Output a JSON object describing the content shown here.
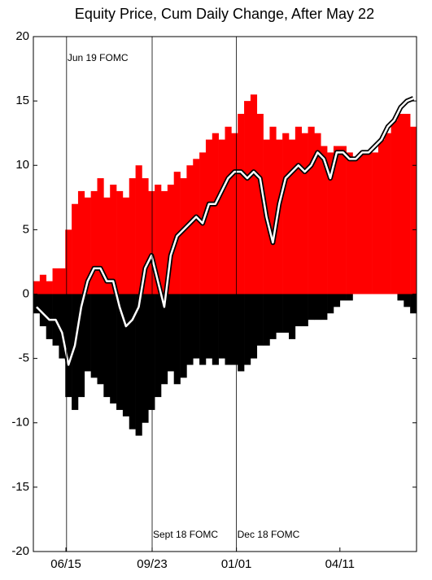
{
  "chart_data": {
    "type": "bar",
    "title": "Equity Price, Cum Daily Change, After May 22",
    "x": [
      0,
      1,
      2,
      3,
      4,
      5,
      6,
      7,
      8,
      9,
      10,
      11,
      12,
      13,
      14,
      15,
      16,
      17,
      18,
      19,
      20,
      21,
      22,
      23,
      24,
      25,
      26,
      27,
      28,
      29,
      30,
      31,
      32,
      33,
      34,
      35,
      36,
      37,
      38,
      39,
      40,
      41,
      42,
      43,
      44,
      45,
      46,
      47,
      48,
      49,
      50,
      51,
      52,
      53,
      54,
      55,
      56,
      57,
      58,
      59
    ],
    "series": [
      {
        "type": "bar",
        "color": "#ff0000",
        "values": [
          1,
          1.5,
          1,
          2,
          2,
          5,
          7,
          8,
          7.5,
          8,
          9,
          7.5,
          8.5,
          8,
          7.5,
          9,
          10,
          9,
          8,
          8.5,
          8,
          8.5,
          9.5,
          9,
          10,
          10.5,
          11,
          12,
          12.5,
          12,
          13,
          12.5,
          14,
          15,
          15.5,
          14,
          12,
          13,
          12,
          12.5,
          12,
          13,
          12.5,
          13,
          12.5,
          11.5,
          11,
          11.5,
          11.5,
          11,
          10.5,
          11,
          11,
          11,
          12,
          12.5,
          13.5,
          14,
          14,
          13
        ]
      },
      {
        "type": "bar",
        "color": "#000000",
        "values": [
          -1.5,
          -2.5,
          -3.5,
          -4,
          -5,
          -8,
          -9,
          -8,
          -6,
          -6.5,
          -7,
          -8,
          -8.5,
          -9,
          -9.5,
          -10.5,
          -11,
          -10,
          -9,
          -8,
          -7,
          -6,
          -7,
          -6.5,
          -5.5,
          -5,
          -5.5,
          -5,
          -5.5,
          -5,
          -5.5,
          -5.5,
          -6,
          -5.5,
          -5,
          -4,
          -4,
          -3.5,
          -3,
          -3,
          -3.5,
          -2.5,
          -2.5,
          -2,
          -2,
          -2,
          -1.5,
          -1,
          -0.5,
          -0.5,
          0,
          0,
          0,
          0,
          0,
          0,
          0,
          -0.5,
          -1,
          -1.5
        ]
      },
      {
        "type": "line",
        "color": "#ffffff",
        "values": [
          -1,
          -1.5,
          -2,
          -2,
          -3,
          -5.5,
          -4,
          -1,
          1,
          2,
          2,
          1,
          1,
          -1,
          -2.5,
          -2,
          -1,
          2,
          3,
          1,
          -1,
          3,
          4.5,
          5,
          5.5,
          6,
          5.5,
          7,
          7,
          8,
          9,
          9.5,
          9.5,
          9,
          9.5,
          9,
          6,
          4,
          7,
          9,
          9.5,
          10,
          9.5,
          10,
          11,
          10.5,
          9,
          11,
          11,
          10.5,
          10.5,
          11,
          11,
          11.5,
          12,
          13,
          13.5,
          14.5,
          15,
          15.2
        ]
      }
    ],
    "xlim": [
      0,
      60
    ],
    "xticks": [
      {
        "value": 5.1,
        "label": "06/15"
      },
      {
        "value": 18.6,
        "label": "09/23"
      },
      {
        "value": 31.8,
        "label": "01/01"
      },
      {
        "value": 48,
        "label": "04/11"
      }
    ],
    "ylim": [
      -20,
      20
    ],
    "yticks": [
      -20,
      -15,
      -10,
      -5,
      0,
      5,
      10,
      15,
      20
    ],
    "grid": false,
    "annotations": [
      {
        "text": "Jun 19 FOMC",
        "x": 5.2,
        "position": "top"
      },
      {
        "text": "Sept 18 FOMC",
        "x": 18.6,
        "position": "bottom"
      },
      {
        "text": "Dec 18 FOMC",
        "x": 31.8,
        "position": "bottom"
      }
    ]
  }
}
